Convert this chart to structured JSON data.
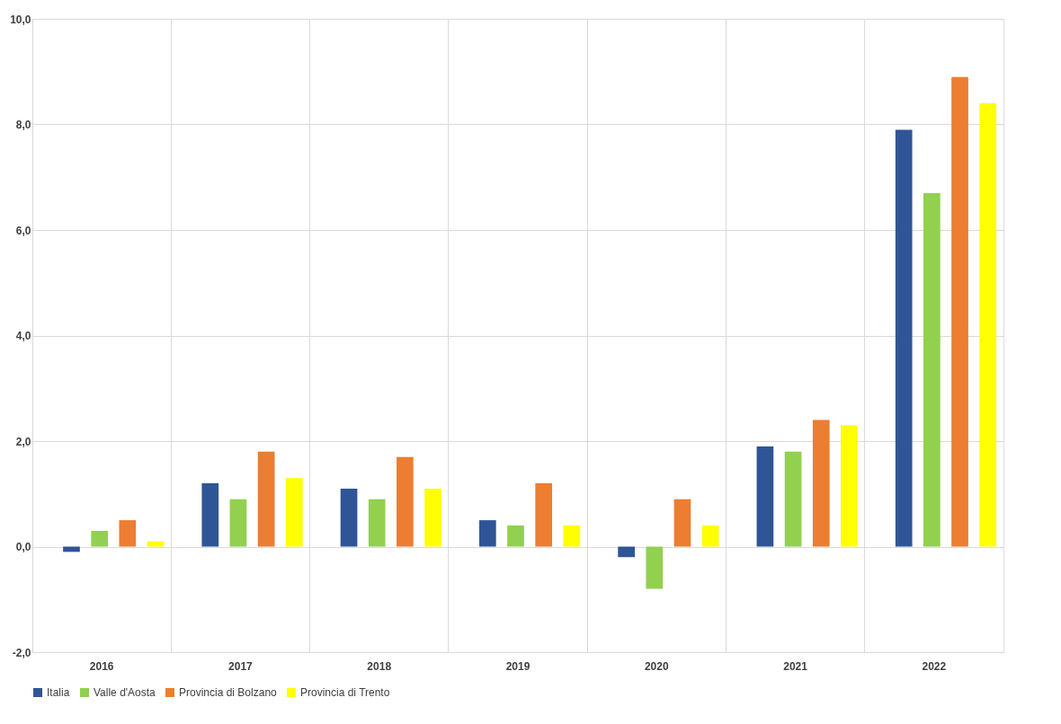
{
  "chart_data": {
    "type": "bar",
    "categories": [
      "2016",
      "2017",
      "2018",
      "2019",
      "2020",
      "2021",
      "2022"
    ],
    "series": [
      {
        "name": "Italia",
        "color": "#2f5597",
        "values": [
          -0.1,
          1.2,
          1.1,
          0.5,
          -0.2,
          1.9,
          7.9
        ]
      },
      {
        "name": "Valle d'Aosta",
        "color": "#92d050",
        "values": [
          0.3,
          0.9,
          0.9,
          0.4,
          -0.8,
          1.8,
          6.7
        ]
      },
      {
        "name": "Provincia di Bolzano",
        "color": "#ed7d31",
        "values": [
          0.5,
          1.8,
          1.7,
          1.2,
          0.9,
          2.4,
          8.9
        ]
      },
      {
        "name": "Provincia di Trento",
        "color": "#ffff00",
        "values": [
          0.1,
          1.3,
          1.1,
          0.4,
          0.4,
          2.3,
          8.4
        ]
      }
    ],
    "ylim": [
      -2,
      10
    ],
    "yticks": [
      {
        "value": -2,
        "label": "-2,0"
      },
      {
        "value": 0,
        "label": "0,0"
      },
      {
        "value": 2,
        "label": "2,0"
      },
      {
        "value": 4,
        "label": "4,0"
      },
      {
        "value": 6,
        "label": "6,0"
      },
      {
        "value": 8,
        "label": "8,0"
      },
      {
        "value": 10,
        "label": "10,0"
      }
    ],
    "grid": true,
    "legend": "bottom"
  }
}
